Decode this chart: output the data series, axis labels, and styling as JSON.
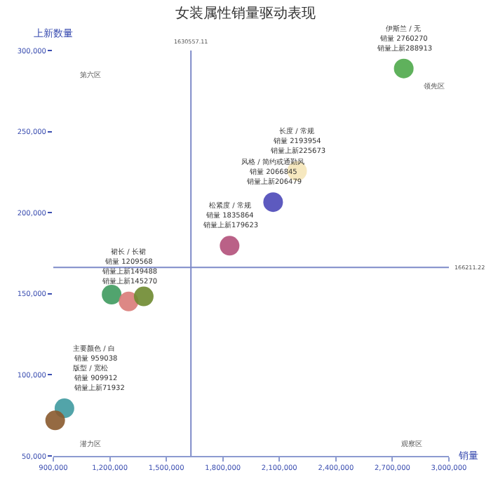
{
  "chart_data": {
    "type": "scatter",
    "title": "女装属性销量驱动表现",
    "xlabel": "销量",
    "ylabel": "上新数量",
    "xlim": [
      900000,
      3000000
    ],
    "xticks": [
      {
        "value": 900000,
        "label": "900,000"
      },
      {
        "value": 1200000,
        "label": "1,200,000"
      },
      {
        "value": 1500000,
        "label": "1,500,000"
      },
      {
        "value": 1800000,
        "label": "1,800,000"
      },
      {
        "value": 2100000,
        "label": "2,100,000"
      },
      {
        "value": 2400000,
        "label": "2,400,000"
      },
      {
        "value": 2700000,
        "label": "2,700,000"
      },
      {
        "value": 3000000,
        "label": "3,000,000"
      }
    ],
    "ylim": [
      50000,
      300000
    ],
    "yticks": [
      {
        "value": 50000,
        "label": "50,000"
      },
      {
        "value": 100000,
        "label": "100,000"
      },
      {
        "value": 150000,
        "label": "150,000"
      },
      {
        "value": 200000,
        "label": "200,000"
      },
      {
        "value": 250000,
        "label": "250,000"
      },
      {
        "value": 300000,
        "label": "300,000"
      }
    ],
    "grid": false,
    "marker": "circle",
    "series": [
      {
        "color": "#4ea84a",
        "x": [
          2760270
        ],
        "values": [
          288913
        ]
      },
      {
        "color": "#f5e6b8",
        "x": [
          2193954
        ],
        "values": [
          225673
        ]
      },
      {
        "color": "#4b48b8",
        "x": [
          2066845
        ],
        "values": [
          206479
        ]
      },
      {
        "color": "#b2507a",
        "x": [
          1835864
        ],
        "values": [
          179623
        ]
      },
      {
        "color": "#3e9a5e",
        "x": [
          1209568
        ],
        "values": [
          149488
        ]
      },
      {
        "color": "#d97b78",
        "x": [
          1300000
        ],
        "values": [
          145270
        ]
      },
      {
        "color": "#6e8a30",
        "x": [
          1380000
        ],
        "values": [
          148348
        ]
      },
      {
        "color": "#3f9aa0",
        "x": [
          959038
        ],
        "values": [
          79375
        ]
      },
      {
        "color": "#8a5a2e",
        "x": [
          909912
        ],
        "values": [
          71932
        ]
      }
    ],
    "ref_lines": [
      {
        "axis": "x",
        "value": 1630557.11,
        "label": "1630557.11"
      },
      {
        "axis": "y",
        "value": 166211.22,
        "label": "166211.22"
      }
    ],
    "annotations": [
      "伊斯兰 / 无",
      "销量 2760270",
      {
        "text": "销量上新288913",
        "x": 2760270,
        "y": 288913
      },
      "长度 / 常规",
      "销量 2193954",
      {
        "text": "销量上新225673",
        "x": 2193954,
        "y": 225673
      },
      "风格 / 简约或通勤风",
      "销量 2066845",
      {
        "text": "销量上新206479",
        "x": 2066845,
        "y": 206479
      },
      "松紧度 / 常规",
      "销量 1835864",
      {
        "text": "销量上新179623",
        "x": 1835864,
        "y": 179623
      },
      "裙长 / 长裙",
      "销量 1209568",
      "销量上新149488",
      {
        "text": "销量上新145270",
        "x": 1300000,
        "y": 145270
      },
      "主要颜色 / 白",
      "销量 959038",
      "版型 / 宽松",
      "销量 909912",
      {
        "text": "销量上新71932",
        "x": 959038,
        "y": 79375
      },
      "第六区",
      "领先区",
      "潜力区",
      "观察区"
    ]
  }
}
